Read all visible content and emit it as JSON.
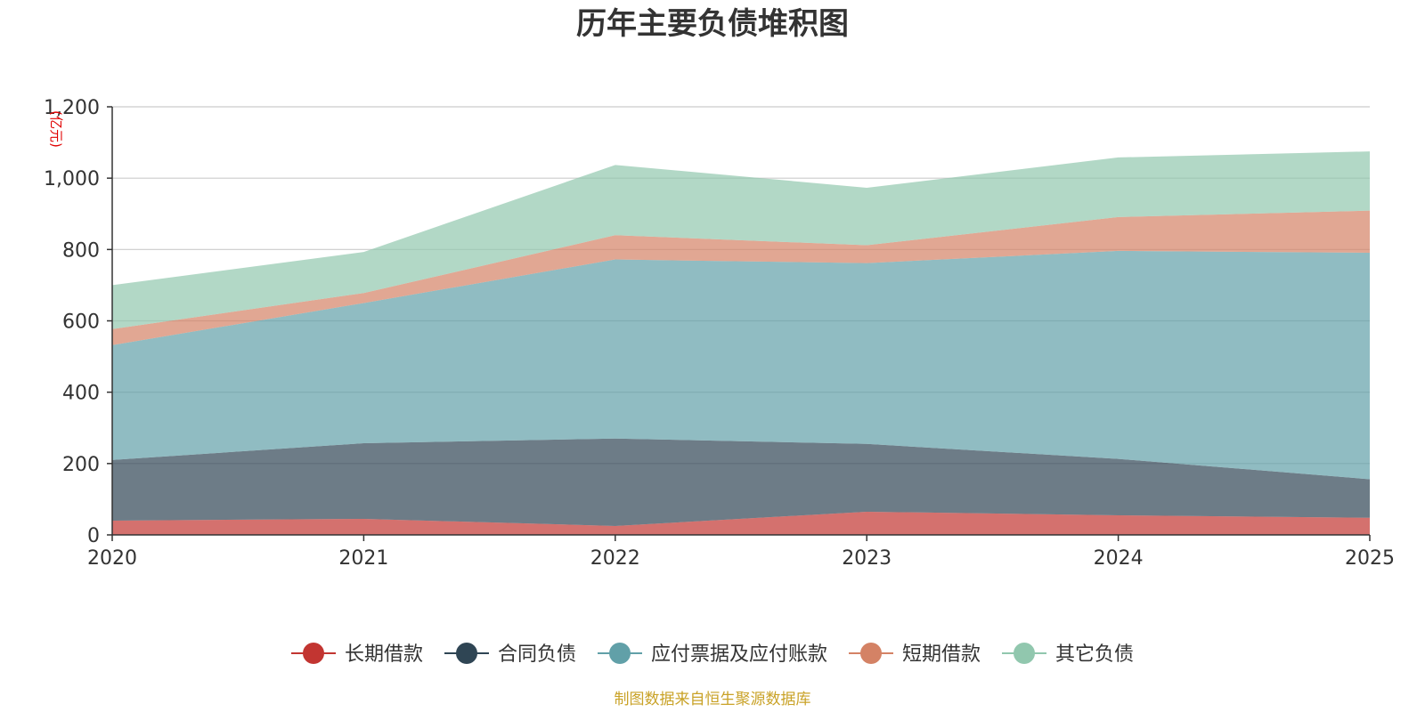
{
  "chart_data": {
    "type": "area",
    "stacked": true,
    "title": "历年主要负债堆积图",
    "ylabel": "(亿元)",
    "xlabel": "",
    "categories": [
      "2020",
      "2021",
      "2022",
      "2023",
      "2024",
      "2025"
    ],
    "ylim": [
      0,
      1200
    ],
    "yticks": [
      0,
      200,
      400,
      600,
      800,
      1000,
      1200
    ],
    "ytick_labels": [
      "0",
      "200",
      "400",
      "600",
      "800",
      "1,000",
      "1,200"
    ],
    "grid": true,
    "legend_position": "bottom",
    "series": [
      {
        "name": "长期借款",
        "color": "#c23531",
        "values": [
          40,
          45,
          25,
          65,
          55,
          48
        ]
      },
      {
        "name": "合同负债",
        "color": "#2f4554",
        "values": [
          170,
          212,
          245,
          190,
          158,
          108
        ]
      },
      {
        "name": "应付票据及应付账款",
        "color": "#61a0a8",
        "values": [
          322,
          393,
          502,
          507,
          583,
          635
        ]
      },
      {
        "name": "短期借款",
        "color": "#d48265",
        "values": [
          45,
          28,
          68,
          50,
          95,
          118
        ]
      },
      {
        "name": "其它负债",
        "color": "#91c7ae",
        "values": [
          123,
          115,
          197,
          161,
          167,
          166
        ]
      }
    ],
    "source_note": "制图数据来自恒生聚源数据库"
  }
}
